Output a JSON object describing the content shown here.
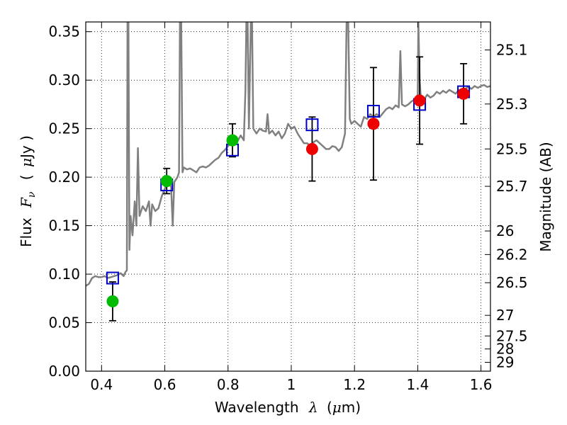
{
  "chart_data": {
    "type": "scatter",
    "xlabel": {
      "prefix": "Wavelength",
      "symbol": "λ",
      "unit_open": "(",
      "unit_mu": "μ",
      "unit_rest": "m)"
    },
    "ylabel": {
      "prefix": "Flux",
      "symbol": "F",
      "subscript": "ν",
      "unit_open": "(",
      "unit_mu": "μ",
      "unit_rest": "Jy )"
    },
    "y2label": "Magnitude (AB)",
    "xlim": [
      0.35,
      1.63
    ],
    "ylim": [
      0.0,
      0.36
    ],
    "grid": true,
    "xticks": [
      {
        "v": 0.4,
        "label": "0.4"
      },
      {
        "v": 0.6,
        "label": "0.6"
      },
      {
        "v": 0.8,
        "label": "0.8"
      },
      {
        "v": 1.0,
        "label": "1"
      },
      {
        "v": 1.2,
        "label": "1.2"
      },
      {
        "v": 1.4,
        "label": "1.4"
      },
      {
        "v": 1.6,
        "label": "1.6"
      }
    ],
    "yticks": [
      {
        "v": 0.0,
        "label": "0.00"
      },
      {
        "v": 0.05,
        "label": "0.05"
      },
      {
        "v": 0.1,
        "label": "0.10"
      },
      {
        "v": 0.15,
        "label": "0.15"
      },
      {
        "v": 0.2,
        "label": "0.20"
      },
      {
        "v": 0.25,
        "label": "0.25"
      },
      {
        "v": 0.3,
        "label": "0.30"
      },
      {
        "v": 0.35,
        "label": "0.35"
      }
    ],
    "y2ticks": [
      {
        "mag": 25.1,
        "label": "25.1"
      },
      {
        "mag": 25.3,
        "label": "25.3"
      },
      {
        "mag": 25.5,
        "label": "25.5"
      },
      {
        "mag": 25.7,
        "label": "25.7"
      },
      {
        "mag": 26.0,
        "label": "26"
      },
      {
        "mag": 26.2,
        "label": "26.2"
      },
      {
        "mag": 26.5,
        "label": "26.5"
      },
      {
        "mag": 27.0,
        "label": "27"
      },
      {
        "mag": 27.5,
        "label": "27.5"
      },
      {
        "mag": 28.0,
        "label": "28"
      },
      {
        "mag": 29.0,
        "label": "29"
      }
    ],
    "colors": {
      "spectrum": "#808080",
      "model": "#0000cc",
      "optical": "#00bb00",
      "infrared": "#ee0000",
      "errorbar": "#000000"
    },
    "spectrum": [
      [
        0.35,
        0.088
      ],
      [
        0.36,
        0.09
      ],
      [
        0.37,
        0.096
      ],
      [
        0.38,
        0.098
      ],
      [
        0.39,
        0.097
      ],
      [
        0.4,
        0.097
      ],
      [
        0.41,
        0.098
      ],
      [
        0.42,
        0.096
      ],
      [
        0.43,
        0.097
      ],
      [
        0.44,
        0.098
      ],
      [
        0.45,
        0.099
      ],
      [
        0.46,
        0.101
      ],
      [
        0.47,
        0.098
      ],
      [
        0.475,
        0.102
      ],
      [
        0.48,
        0.104
      ],
      [
        0.482,
        0.36
      ],
      [
        0.485,
        0.36
      ],
      [
        0.488,
        0.125
      ],
      [
        0.492,
        0.16
      ],
      [
        0.498,
        0.14
      ],
      [
        0.505,
        0.175
      ],
      [
        0.51,
        0.15
      ],
      [
        0.515,
        0.23
      ],
      [
        0.52,
        0.16
      ],
      [
        0.53,
        0.17
      ],
      [
        0.54,
        0.165
      ],
      [
        0.55,
        0.175
      ],
      [
        0.555,
        0.15
      ],
      [
        0.56,
        0.172
      ],
      [
        0.57,
        0.165
      ],
      [
        0.58,
        0.168
      ],
      [
        0.59,
        0.18
      ],
      [
        0.6,
        0.188
      ],
      [
        0.61,
        0.195
      ],
      [
        0.62,
        0.19
      ],
      [
        0.625,
        0.15
      ],
      [
        0.63,
        0.195
      ],
      [
        0.64,
        0.2
      ],
      [
        0.645,
        0.205
      ],
      [
        0.648,
        0.36
      ],
      [
        0.652,
        0.36
      ],
      [
        0.656,
        0.205
      ],
      [
        0.66,
        0.21
      ],
      [
        0.67,
        0.208
      ],
      [
        0.68,
        0.209
      ],
      [
        0.69,
        0.207
      ],
      [
        0.7,
        0.205
      ],
      [
        0.71,
        0.21
      ],
      [
        0.72,
        0.211
      ],
      [
        0.73,
        0.21
      ],
      [
        0.74,
        0.212
      ],
      [
        0.75,
        0.215
      ],
      [
        0.76,
        0.218
      ],
      [
        0.77,
        0.22
      ],
      [
        0.78,
        0.225
      ],
      [
        0.79,
        0.228
      ],
      [
        0.8,
        0.232
      ],
      [
        0.81,
        0.235
      ],
      [
        0.82,
        0.235
      ],
      [
        0.83,
        0.237
      ],
      [
        0.84,
        0.243
      ],
      [
        0.85,
        0.238
      ],
      [
        0.855,
        0.29
      ],
      [
        0.858,
        0.36
      ],
      [
        0.862,
        0.36
      ],
      [
        0.866,
        0.25
      ],
      [
        0.872,
        0.36
      ],
      [
        0.876,
        0.36
      ],
      [
        0.88,
        0.25
      ],
      [
        0.89,
        0.245
      ],
      [
        0.9,
        0.25
      ],
      [
        0.91,
        0.248
      ],
      [
        0.92,
        0.247
      ],
      [
        0.925,
        0.265
      ],
      [
        0.93,
        0.245
      ],
      [
        0.94,
        0.248
      ],
      [
        0.95,
        0.243
      ],
      [
        0.96,
        0.247
      ],
      [
        0.97,
        0.24
      ],
      [
        0.98,
        0.245
      ],
      [
        0.99,
        0.255
      ],
      [
        1.0,
        0.25
      ],
      [
        1.01,
        0.252
      ],
      [
        1.02,
        0.245
      ],
      [
        1.03,
        0.24
      ],
      [
        1.04,
        0.235
      ],
      [
        1.05,
        0.235
      ],
      [
        1.06,
        0.232
      ],
      [
        1.07,
        0.236
      ],
      [
        1.08,
        0.238
      ],
      [
        1.09,
        0.235
      ],
      [
        1.1,
        0.232
      ],
      [
        1.11,
        0.229
      ],
      [
        1.12,
        0.229
      ],
      [
        1.13,
        0.232
      ],
      [
        1.14,
        0.231
      ],
      [
        1.15,
        0.227
      ],
      [
        1.16,
        0.231
      ],
      [
        1.17,
        0.245
      ],
      [
        1.175,
        0.36
      ],
      [
        1.18,
        0.36
      ],
      [
        1.185,
        0.26
      ],
      [
        1.19,
        0.255
      ],
      [
        1.2,
        0.258
      ],
      [
        1.21,
        0.255
      ],
      [
        1.22,
        0.252
      ],
      [
        1.23,
        0.262
      ],
      [
        1.24,
        0.26
      ],
      [
        1.25,
        0.265
      ],
      [
        1.26,
        0.262
      ],
      [
        1.27,
        0.265
      ],
      [
        1.28,
        0.262
      ],
      [
        1.29,
        0.266
      ],
      [
        1.3,
        0.27
      ],
      [
        1.31,
        0.272
      ],
      [
        1.32,
        0.27
      ],
      [
        1.33,
        0.274
      ],
      [
        1.34,
        0.272
      ],
      [
        1.345,
        0.33
      ],
      [
        1.35,
        0.275
      ],
      [
        1.36,
        0.273
      ],
      [
        1.37,
        0.275
      ],
      [
        1.38,
        0.278
      ],
      [
        1.39,
        0.28
      ],
      [
        1.4,
        0.285
      ],
      [
        1.402,
        0.36
      ],
      [
        1.406,
        0.3
      ],
      [
        1.41,
        0.281
      ],
      [
        1.42,
        0.28
      ],
      [
        1.43,
        0.285
      ],
      [
        1.44,
        0.282
      ],
      [
        1.45,
        0.284
      ],
      [
        1.46,
        0.288
      ],
      [
        1.47,
        0.286
      ],
      [
        1.48,
        0.289
      ],
      [
        1.49,
        0.287
      ],
      [
        1.5,
        0.29
      ],
      [
        1.51,
        0.288
      ],
      [
        1.52,
        0.286
      ],
      [
        1.53,
        0.29
      ],
      [
        1.54,
        0.289
      ],
      [
        1.55,
        0.291
      ],
      [
        1.56,
        0.293
      ],
      [
        1.57,
        0.291
      ],
      [
        1.58,
        0.294
      ],
      [
        1.59,
        0.292
      ],
      [
        1.6,
        0.294
      ],
      [
        1.61,
        0.295
      ],
      [
        1.62,
        0.293
      ],
      [
        1.63,
        0.294
      ]
    ],
    "model_points": [
      {
        "x": 0.435,
        "y": 0.096
      },
      {
        "x": 0.606,
        "y": 0.192
      },
      {
        "x": 0.814,
        "y": 0.228
      },
      {
        "x": 1.066,
        "y": 0.254
      },
      {
        "x": 1.26,
        "y": 0.268
      },
      {
        "x": 1.406,
        "y": 0.275
      },
      {
        "x": 1.545,
        "y": 0.288
      }
    ],
    "observed_points": [
      {
        "x": 0.435,
        "y": 0.072,
        "err": 0.02,
        "band": "optical"
      },
      {
        "x": 0.606,
        "y": 0.196,
        "err": 0.013,
        "band": "optical"
      },
      {
        "x": 0.814,
        "y": 0.238,
        "err": 0.017,
        "band": "optical"
      },
      {
        "x": 1.066,
        "y": 0.229,
        "err": 0.033,
        "band": "infrared"
      },
      {
        "x": 1.26,
        "y": 0.255,
        "err": 0.058,
        "band": "infrared"
      },
      {
        "x": 1.406,
        "y": 0.279,
        "err": 0.045,
        "band": "infrared"
      },
      {
        "x": 1.545,
        "y": 0.286,
        "err": 0.031,
        "band": "infrared"
      }
    ]
  }
}
